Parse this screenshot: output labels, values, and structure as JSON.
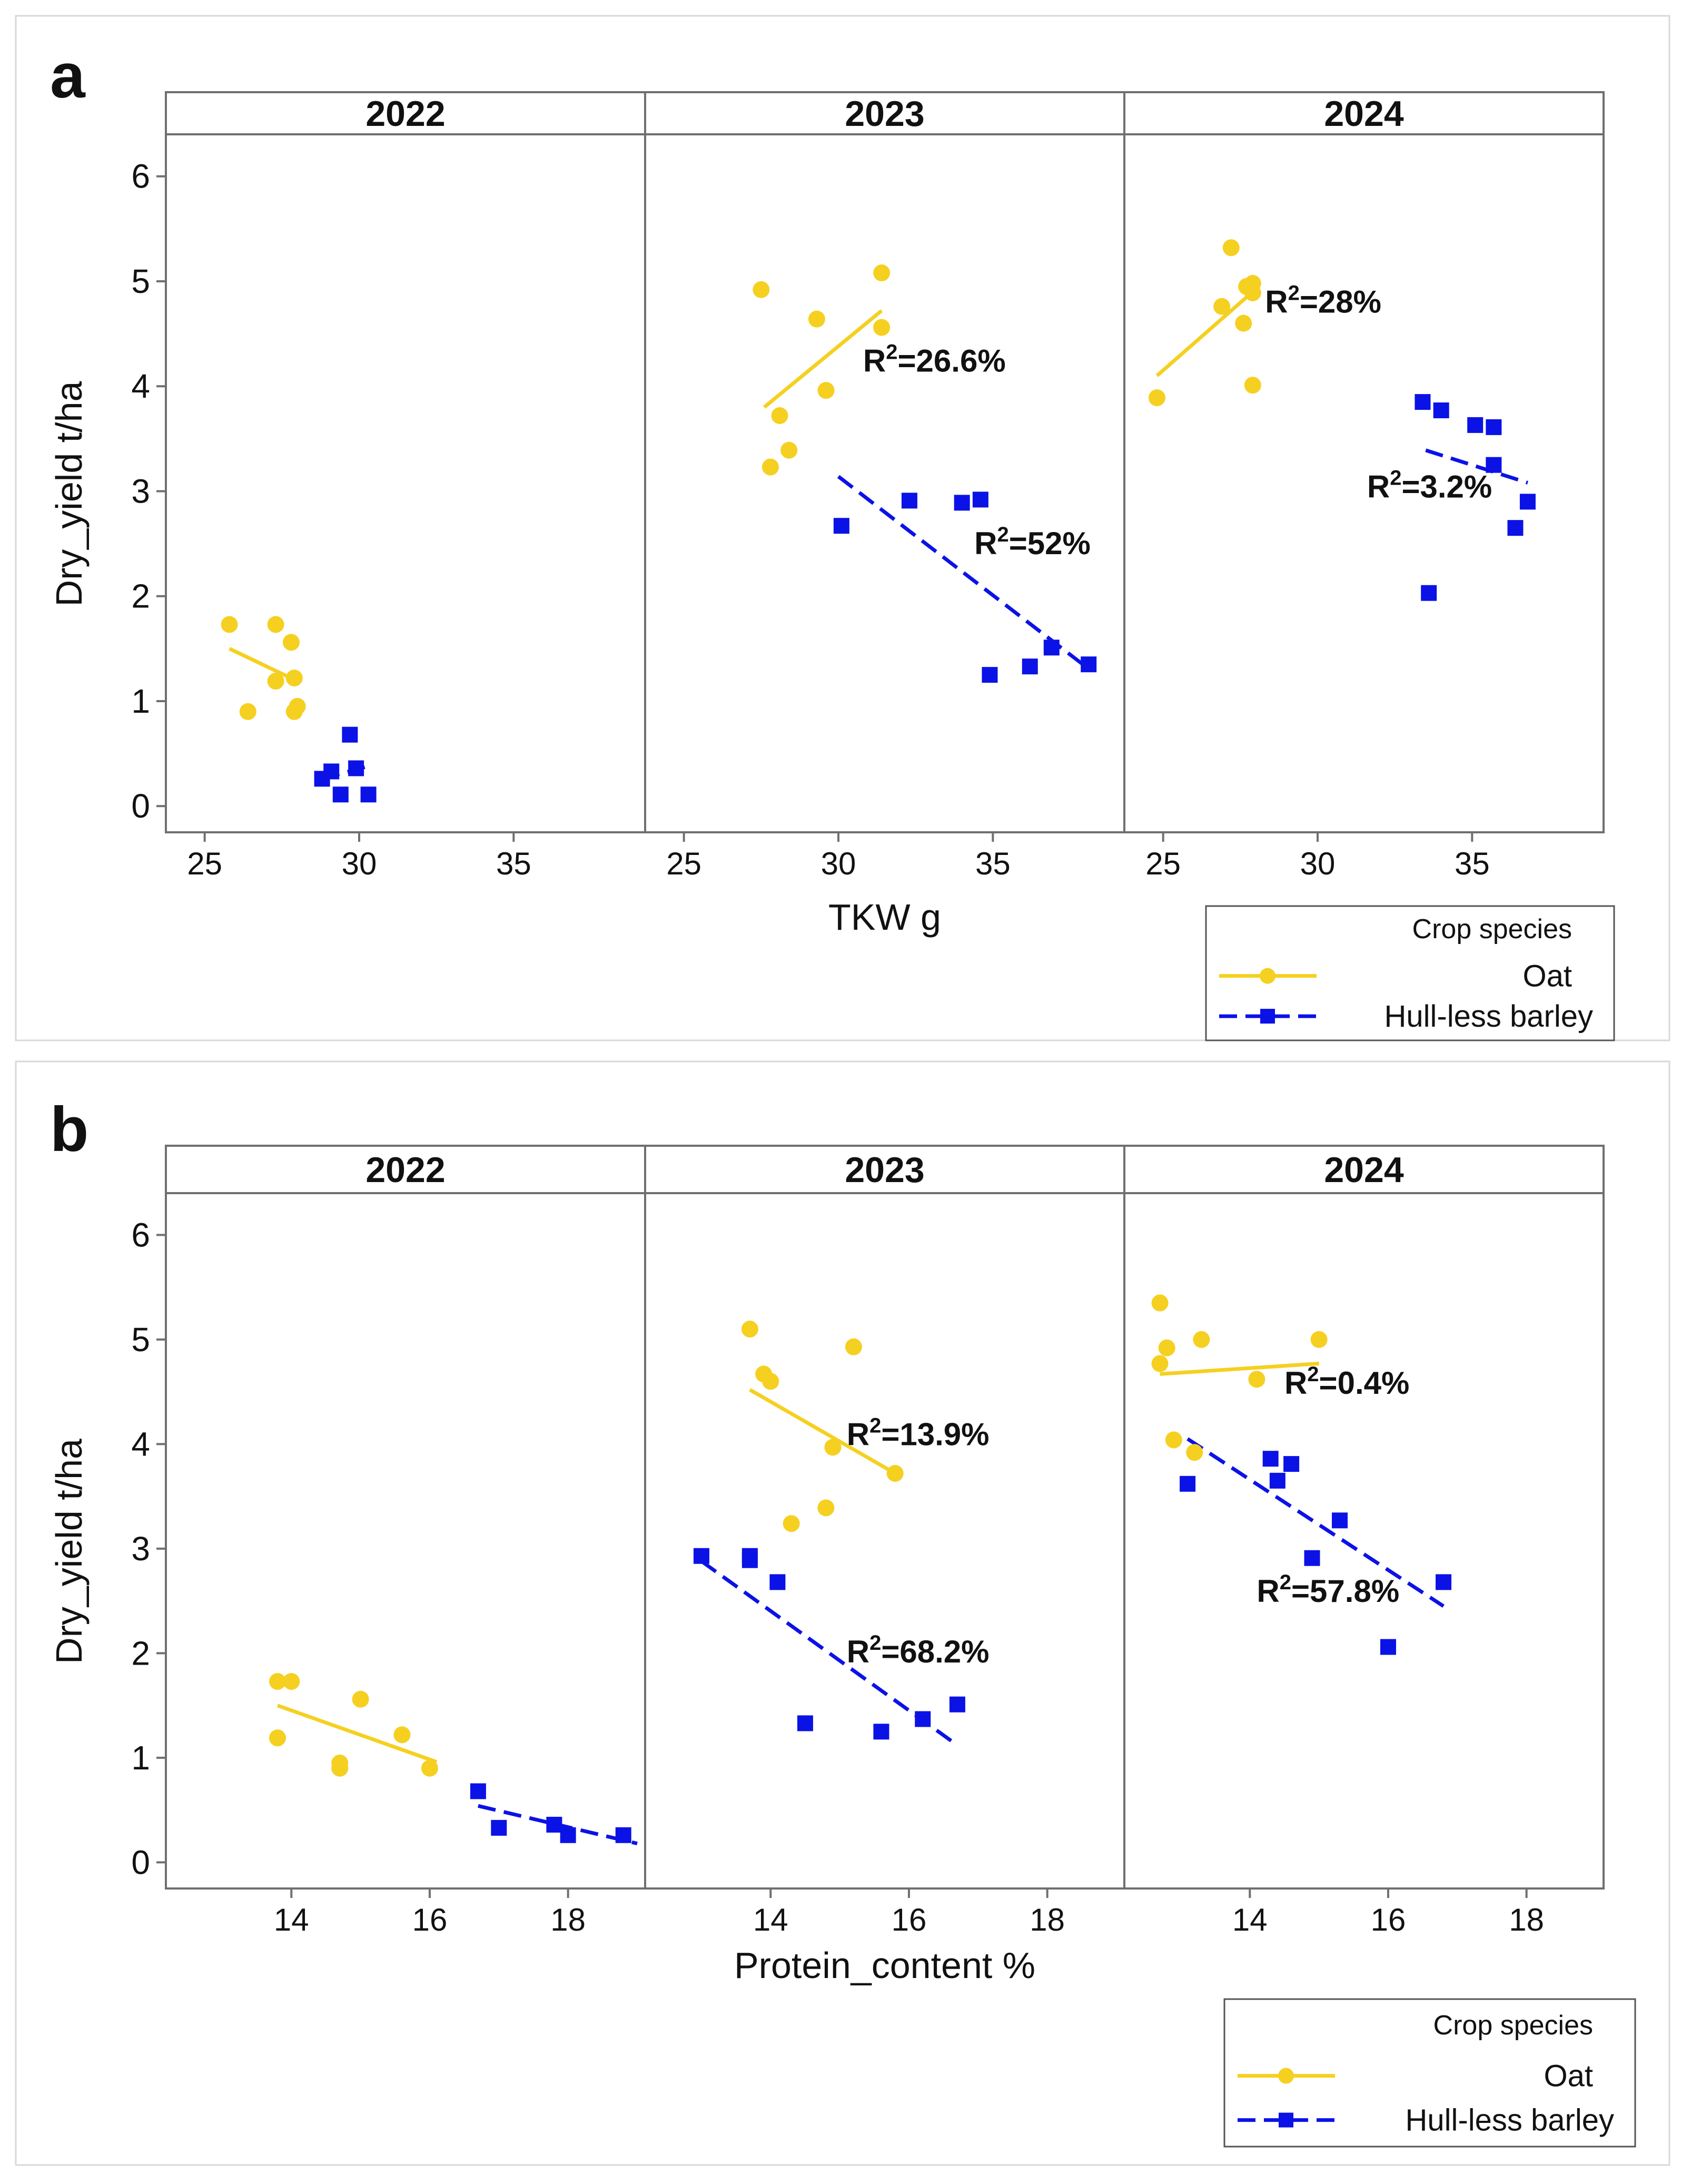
{
  "colors": {
    "oat": "#f5d020",
    "barley": "#0b12e6",
    "frame": "#6f6f6f",
    "text": "#111111",
    "boxfill": "#ffffff"
  },
  "chart_data": [
    {
      "panel_label": "a",
      "type": "scatter",
      "xlabel": "TKW g",
      "ylabel": "Dry_yield t/ha",
      "ylim": [
        -0.25,
        6.4
      ],
      "yticks": [
        0,
        1,
        2,
        3,
        4,
        5,
        6
      ],
      "xlim": [
        24,
        39
      ],
      "xticks": [
        25,
        30,
        35
      ],
      "grid": false,
      "legend": {
        "title": "Crop species",
        "entries": [
          "Oat",
          "Hull-less barley"
        ]
      },
      "facets": [
        {
          "title": "2022",
          "oat": {
            "x": [
              25.8,
              27.3,
              26.4,
              27.8,
              27.3,
              27.9,
              28.0,
              27.9
            ],
            "y": [
              1.73,
              1.73,
              0.9,
              1.56,
              1.19,
              1.22,
              0.95,
              0.9
            ],
            "fit": [
              [
                25.8,
                1.5
              ],
              [
                28.0,
                1.19
              ]
            ]
          },
          "barley": {
            "x": [
              29.7,
              28.8,
              29.1,
              29.9,
              29.4,
              30.3
            ],
            "y": [
              0.68,
              0.26,
              0.33,
              0.36,
              0.11,
              0.11
            ],
            "fit": [
              [
                28.8,
                0.26
              ],
              [
                30.3,
                0.38
              ]
            ]
          },
          "r2": []
        },
        {
          "title": "2023",
          "oat": {
            "x": [
              27.5,
              31.4,
              29.3,
              31.4,
              29.6,
              28.1,
              28.4,
              27.8
            ],
            "y": [
              4.92,
              5.08,
              4.64,
              4.56,
              3.96,
              3.72,
              3.39,
              3.23
            ],
            "fit": [
              [
                27.6,
                3.8
              ],
              [
                31.4,
                4.72
              ]
            ]
          },
          "barley": {
            "x": [
              30.1,
              32.3,
              34.0,
              34.6,
              34.9,
              36.2,
              36.9,
              38.1
            ],
            "y": [
              2.67,
              2.91,
              2.89,
              2.92,
              1.25,
              1.33,
              1.51,
              1.35
            ],
            "fit": [
              [
                30.0,
                3.14
              ],
              [
                38.0,
                1.33
              ]
            ]
          },
          "r2": [
            {
              "series": "oat",
              "label": "R",
              "sup": "2",
              "value": "=26.6%",
              "at": [
                30.8,
                4.14
              ]
            },
            {
              "series": "barley",
              "label": "R",
              "sup": "2",
              "value": "=52%",
              "at": [
                34.4,
                2.4
              ]
            }
          ]
        },
        {
          "title": "2024",
          "oat": {
            "x": [
              24.8,
              27.2,
              27.7,
              27.9,
              26.9,
              27.9,
              27.6,
              27.9
            ],
            "y": [
              3.89,
              5.32,
              4.95,
              4.89,
              4.76,
              4.01,
              4.6,
              4.98
            ],
            "fit": [
              [
                24.8,
                4.1
              ],
              [
                27.9,
                4.9
              ]
            ]
          },
          "barley": {
            "x": [
              33.4,
              34.0,
              35.1,
              35.7,
              35.7,
              36.4,
              36.8,
              33.6
            ],
            "y": [
              3.85,
              3.77,
              3.63,
              3.61,
              3.25,
              2.65,
              2.9,
              2.03
            ],
            "fit": [
              [
                33.5,
                3.39
              ],
              [
                36.8,
                3.08
              ]
            ]
          },
          "r2": [
            {
              "series": "oat",
              "label": "R",
              "sup": "2",
              "value": "=28%",
              "at": [
                28.3,
                4.7
              ]
            },
            {
              "series": "barley",
              "label": "R",
              "sup": "2",
              "value": "=3.2%",
              "at": [
                31.6,
                2.94
              ]
            }
          ]
        }
      ]
    },
    {
      "panel_label": "b",
      "type": "scatter",
      "xlabel": "Protein_content %",
      "ylabel": "Dry_yield t/ha",
      "ylim": [
        -0.25,
        6.4
      ],
      "yticks": [
        0,
        1,
        2,
        3,
        4,
        5,
        6
      ],
      "xlim": [
        12.3,
        19.0
      ],
      "xticks": [
        14,
        16,
        18
      ],
      "grid": false,
      "legend": {
        "title": "Crop species",
        "entries": [
          "Oat",
          "Hull-less barley"
        ]
      },
      "facets": [
        {
          "title": "2022",
          "oat": {
            "x": [
              13.8,
              14.0,
              13.8,
              15.0,
              15.6,
              14.7,
              14.7,
              16.0
            ],
            "y": [
              1.73,
              1.73,
              1.19,
              1.56,
              1.22,
              0.95,
              0.9,
              0.9
            ],
            "fit": [
              [
                13.8,
                1.5
              ],
              [
                16.1,
                0.96
              ]
            ]
          },
          "barley": {
            "x": [
              16.7,
              17.0,
              17.8,
              18.0,
              18.8
            ],
            "y": [
              0.68,
              0.33,
              0.36,
              0.26,
              0.26
            ],
            "fit": [
              [
                16.7,
                0.54
              ],
              [
                19.0,
                0.18
              ]
            ]
          },
          "r2": []
        },
        {
          "title": "2023",
          "oat": {
            "x": [
              13.7,
              13.9,
              14.0,
              15.2,
              14.9,
              15.8,
              14.3,
              14.8
            ],
            "y": [
              5.1,
              4.67,
              4.6,
              4.93,
              3.97,
              3.72,
              3.24,
              3.39
            ],
            "fit": [
              [
                13.7,
                4.52
              ],
              [
                15.8,
                3.72
              ]
            ]
          },
          "barley": {
            "x": [
              13.0,
              13.7,
              13.7,
              14.1,
              14.5,
              15.6,
              16.2,
              16.7
            ],
            "y": [
              2.93,
              2.93,
              2.89,
              2.68,
              1.33,
              1.25,
              1.37,
              1.51
            ],
            "fit": [
              [
                13.0,
                2.88
              ],
              [
                16.7,
                1.12
              ]
            ]
          },
          "r2": [
            {
              "series": "oat",
              "label": "R",
              "sup": "2",
              "value": "=13.9%",
              "at": [
                15.1,
                3.99
              ]
            },
            {
              "series": "barley",
              "label": "R",
              "sup": "2",
              "value": "=68.2%",
              "at": [
                15.1,
                1.91
              ]
            }
          ]
        },
        {
          "title": "2024",
          "oat": {
            "x": [
              12.7,
              12.8,
              12.7,
              13.3,
              15.0,
              14.1,
              12.9,
              13.2
            ],
            "y": [
              5.35,
              4.92,
              4.77,
              5.0,
              5.0,
              4.62,
              4.04,
              3.92
            ],
            "fit": [
              [
                12.7,
                4.67
              ],
              [
                15.0,
                4.77
              ]
            ]
          },
          "barley": {
            "x": [
              13.1,
              14.3,
              14.6,
              14.4,
              15.3,
              14.9,
              16.8,
              16.0
            ],
            "y": [
              3.62,
              3.86,
              3.81,
              3.65,
              3.27,
              2.91,
              2.68,
              2.06
            ],
            "fit": [
              [
                13.1,
                4.05
              ],
              [
                16.8,
                2.45
              ]
            ]
          },
          "r2": [
            {
              "series": "oat",
              "label": "R",
              "sup": "2",
              "value": "=0.4%",
              "at": [
                14.5,
                4.48
              ]
            },
            {
              "series": "barley",
              "label": "R",
              "sup": "2",
              "value": "=57.8%",
              "at": [
                14.1,
                2.49
              ]
            }
          ]
        }
      ]
    }
  ]
}
